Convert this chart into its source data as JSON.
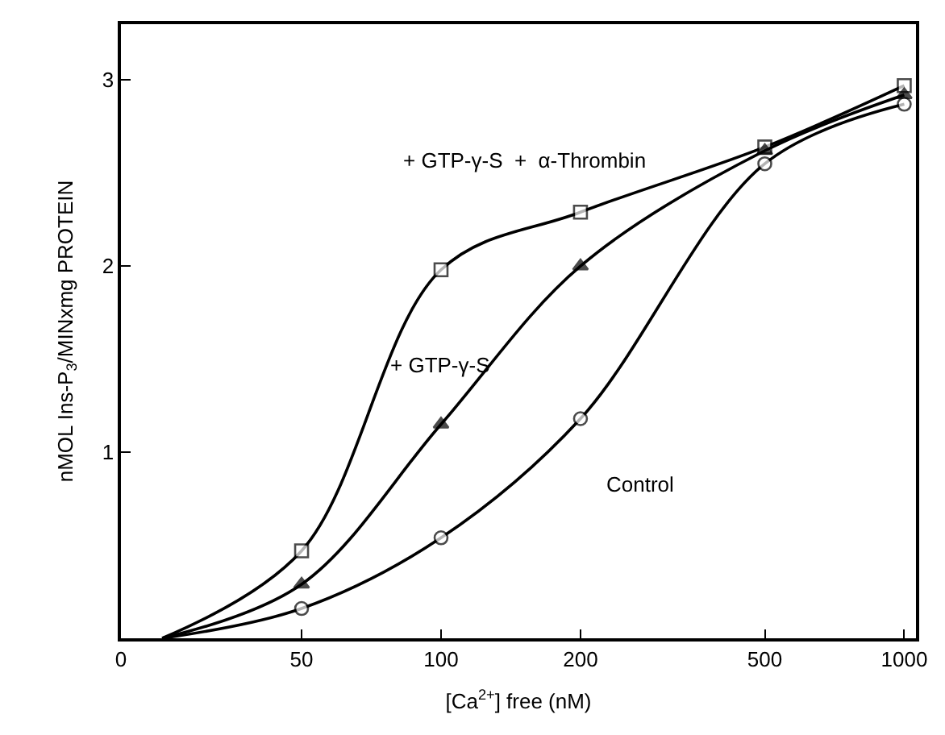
{
  "chart_data": {
    "type": "line",
    "xlabel": "[Ca$^{2+}$] free (nM)",
    "ylabel": "nMOL Ins-P$_{3}$/MINxmg PROTEIN",
    "log": "x",
    "xlim": [
      0,
      1060
    ],
    "xticks": [
      0,
      50,
      100,
      200,
      500,
      1000
    ],
    "ylim": [
      0,
      3.3
    ],
    "yticks": [
      1,
      2,
      3
    ],
    "legend": false,
    "line_style": "solid",
    "x": [
      25,
      50,
      100,
      200,
      500,
      1000
    ],
    "series": [
      {
        "name": "+ GTP-γ-S  +  α-Thrombin",
        "color": "#000000",
        "marker": "square",
        "values": [
          0,
          0.47,
          1.98,
          2.29,
          2.64,
          2.97
        ]
      },
      {
        "name": "+ GTP-γ-S",
        "color": "#000000",
        "marker": "triangle",
        "values": [
          0,
          0.29,
          1.15,
          2.0,
          2.62,
          2.92
        ]
      },
      {
        "name": "Control",
        "color": "#000000",
        "marker": "circle",
        "values": [
          0,
          0.16,
          0.54,
          1.18,
          2.55,
          2.87
        ]
      }
    ]
  }
}
